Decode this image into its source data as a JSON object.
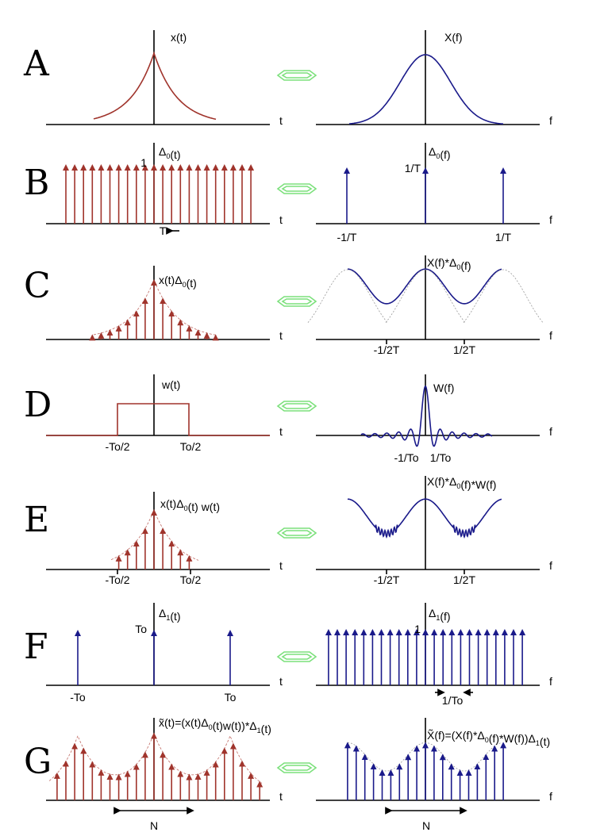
{
  "colors": {
    "time_domain": "#a0342c",
    "freq_domain": "#1a1a8a",
    "pair_symbol": "#7be07b",
    "envelope": "#999999"
  },
  "rows": [
    {
      "letter": "A",
      "left_label": "x(t)",
      "left_axis": "t",
      "right_label": "X(f)",
      "right_axis": "f"
    },
    {
      "letter": "B",
      "left_label": "Δ0(t)",
      "left_axis": "t",
      "left_marker": "1",
      "left_period": "T",
      "right_label": "Δ0(f)",
      "right_axis": "f",
      "right_marker": "1/T",
      "right_ticks": [
        "-1/T",
        "1/T"
      ]
    },
    {
      "letter": "C",
      "left_label": "x(t)Δ0(t)",
      "left_axis": "t",
      "right_label": "X(f)*Δ0(f)",
      "right_axis": "f",
      "right_ticks": [
        "-1/2T",
        "1/2T"
      ]
    },
    {
      "letter": "D",
      "left_label": "w(t)",
      "left_axis": "t",
      "left_ticks": [
        "-To/2",
        "To/2"
      ],
      "right_label": "W(f)",
      "right_axis": "f",
      "right_ticks": [
        "-1/To",
        "1/To"
      ]
    },
    {
      "letter": "E",
      "left_label": "x(t)Δ0(t) w(t)",
      "left_axis": "t",
      "left_ticks": [
        "-To/2",
        "To/2"
      ],
      "right_label": "X(f)*Δ0(f)*W(f)",
      "right_axis": "f",
      "right_ticks": [
        "-1/2T",
        "1/2T"
      ]
    },
    {
      "letter": "F",
      "left_label": "Δ1(t)",
      "left_axis": "t",
      "left_marker": "To",
      "left_ticks": [
        "-To",
        "To"
      ],
      "right_label": "Δ1(f)",
      "right_axis": "f",
      "right_marker": "1",
      "right_period": "1/To"
    },
    {
      "letter": "G",
      "left_label": "x̃(t)=(x(t)Δ0(t)w(t))*Δ1(t)",
      "left_axis": "t",
      "left_span": "N",
      "right_label": "X̃(f)=(X(f)*Δ0(f)*W(f))Δ1(t)",
      "right_axis": "f",
      "right_span": "N"
    }
  ]
}
